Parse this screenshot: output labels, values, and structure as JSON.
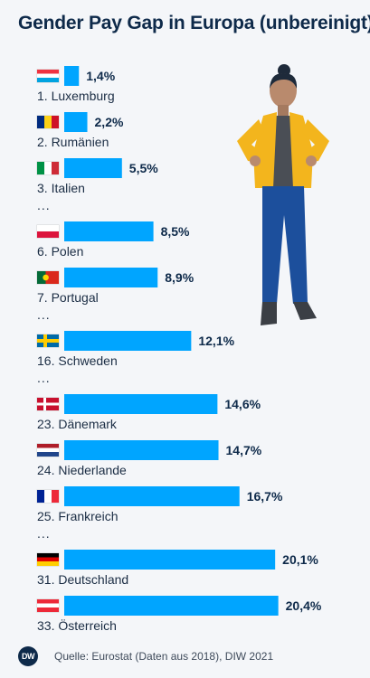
{
  "chart_data": {
    "type": "bar",
    "orientation": "horizontal",
    "title": "Gender Pay Gap in Europa (unbereinigt)",
    "categories": [
      "1. Luxemburg",
      "2. Rumänien",
      "3. Italien",
      "6. Polen",
      "7. Portugal",
      "16. Schweden",
      "23. Dänemark",
      "24. Niederlande",
      "25. Frankreich",
      "31. Deutschland",
      "33. Österreich"
    ],
    "values": [
      1.4,
      2.2,
      5.5,
      8.5,
      8.9,
      12.1,
      14.6,
      14.7,
      16.7,
      20.1,
      20.4
    ],
    "value_labels": [
      "1,4%",
      "2,2%",
      "5,5%",
      "8,5%",
      "8,9%",
      "12,1%",
      "14,6%",
      "14,7%",
      "16,7%",
      "20,1%",
      "20,4%"
    ],
    "flags": [
      "luxembourg-flag",
      "romania-flag",
      "italy-flag",
      "poland-flag",
      "portugal-flag",
      "sweden-flag",
      "denmark-flag",
      "netherlands-flag",
      "france-flag",
      "germany-flag",
      "austria-flag"
    ],
    "ellipsis_after": [
      2,
      4,
      5,
      8
    ],
    "ellipsis_text": "...",
    "bar_color": "#00a5ff",
    "grid": false,
    "legend": "none"
  },
  "footer": {
    "logo_text": "DW",
    "source": "Quelle: Eurostat (Daten aus 2018), DIW 2021"
  },
  "illustration": "woman-hands-on-hips-illustration"
}
